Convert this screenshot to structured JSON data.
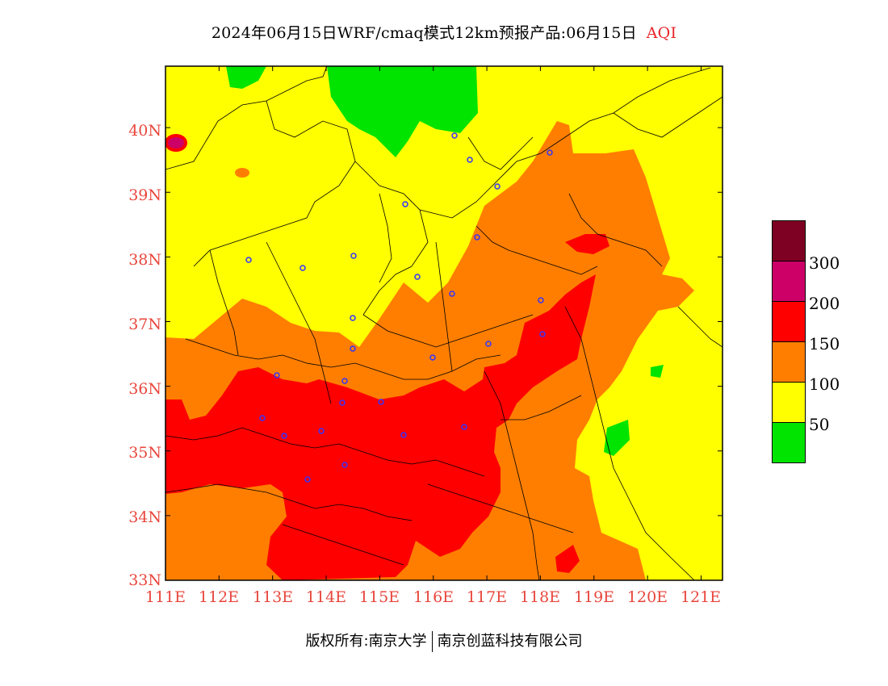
{
  "title": {
    "main": "2024年06月15日WRF/cmaq模式12km预报产品:06月15日",
    "variable": "AQI"
  },
  "map": {
    "lat_labels": [
      "40N",
      "39N",
      "38N",
      "37N",
      "36N",
      "35N",
      "34N",
      "33N"
    ],
    "lon_labels": [
      "111E",
      "112E",
      "113E",
      "114E",
      "115E",
      "116E",
      "117E",
      "118E",
      "119E",
      "120E",
      "121E"
    ],
    "lon_range": [
      111,
      121.4
    ],
    "lat_range": [
      33,
      40.95
    ],
    "colors": {
      "good": "#00e400",
      "moderate": "#ffff00",
      "usg": "#ff7e00",
      "unhealthy": "#ff0000",
      "very_unhealthy": "#cc0066",
      "hazardous": "#7e0023",
      "city_marker": "#3333ff",
      "boundary": "#000000"
    }
  },
  "legend": {
    "colors": [
      "#7e0023",
      "#cc0066",
      "#ff0000",
      "#ff7e00",
      "#ffff00",
      "#00e400"
    ],
    "labels": [
      "300",
      "200",
      "150",
      "100",
      "50"
    ]
  },
  "copyright": {
    "left": "版权所有:南京大学",
    "right": "南京创蓝科技有限公司"
  }
}
